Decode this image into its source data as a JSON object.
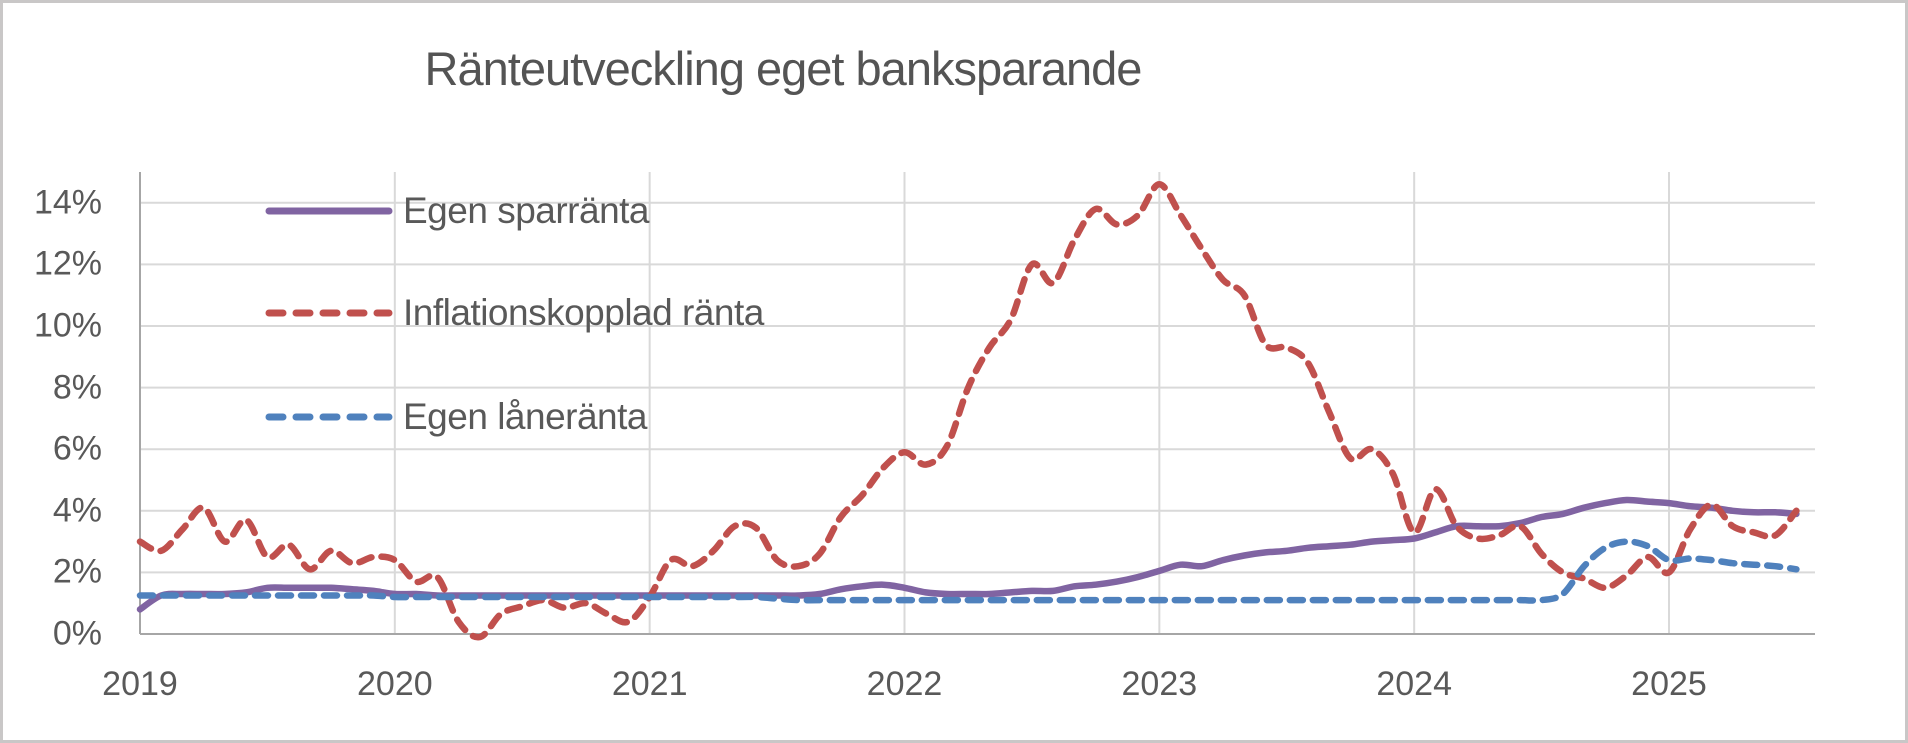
{
  "title": "Ränteutveckling eget banksparande",
  "axes": {
    "y_tick_labels": [
      "0%",
      "2%",
      "4%",
      "6%",
      "8%",
      "10%",
      "12%",
      "14%"
    ],
    "y_tick_values": [
      0,
      2,
      4,
      6,
      8,
      10,
      12,
      14
    ],
    "x_tick_labels": [
      "2019",
      "2020",
      "2021",
      "2022",
      "2023",
      "2024",
      "2025"
    ]
  },
  "colors": {
    "sparranta": "#8064A2",
    "inflation": "#C0504D",
    "laneranta": "#4F81BD",
    "gridline": "#D9D9D9",
    "axis_line": "#A6A6A6",
    "text": "#595959"
  },
  "chart_data": {
    "type": "line",
    "title": "Ränteutveckling eget banksparande",
    "xlabel": "",
    "ylabel": "",
    "y_unit": "percent",
    "ylim": [
      0,
      15
    ],
    "y_major_unit": 2,
    "x_frequency": "monthly",
    "x_start": "2019-01",
    "x_end": "2025-07",
    "x_tick_labels": [
      "2019",
      "2020",
      "2021",
      "2022",
      "2023",
      "2024",
      "2025"
    ],
    "grid": true,
    "legend_position": "inside-top-left",
    "smoothed_lines": true,
    "series": [
      {
        "name": "Egen sparränta",
        "color": "#8064A2",
        "style": "solid",
        "values": [
          0.8,
          1.25,
          1.3,
          1.3,
          1.3,
          1.35,
          1.5,
          1.5,
          1.5,
          1.5,
          1.45,
          1.4,
          1.3,
          1.3,
          1.25,
          1.25,
          1.25,
          1.25,
          1.25,
          1.25,
          1.25,
          1.25,
          1.25,
          1.25,
          1.25,
          1.25,
          1.25,
          1.25,
          1.25,
          1.25,
          1.25,
          1.25,
          1.3,
          1.45,
          1.55,
          1.6,
          1.5,
          1.35,
          1.3,
          1.3,
          1.3,
          1.35,
          1.4,
          1.4,
          1.55,
          1.6,
          1.7,
          1.85,
          2.05,
          2.25,
          2.2,
          2.4,
          2.55,
          2.65,
          2.7,
          2.8,
          2.85,
          2.9,
          3.0,
          3.05,
          3.1,
          3.3,
          3.5,
          3.5,
          3.5,
          3.6,
          3.8,
          3.9,
          4.1,
          4.25,
          4.35,
          4.3,
          4.25,
          4.15,
          4.1,
          4.0,
          3.95,
          3.95,
          3.9
        ]
      },
      {
        "name": "Inflationskopplad ränta",
        "color": "#C0504D",
        "style": "dashed",
        "values": [
          3.0,
          2.7,
          3.4,
          4.1,
          3.0,
          3.7,
          2.5,
          2.9,
          2.1,
          2.7,
          2.3,
          2.5,
          2.4,
          1.7,
          1.85,
          0.4,
          -0.1,
          0.65,
          0.9,
          1.1,
          0.85,
          1.0,
          0.65,
          0.4,
          1.2,
          2.4,
          2.2,
          2.7,
          3.5,
          3.45,
          2.4,
          2.2,
          2.6,
          3.8,
          4.5,
          5.4,
          5.9,
          5.5,
          6.1,
          8.0,
          9.3,
          10.2,
          12.0,
          11.4,
          12.8,
          13.8,
          13.3,
          13.6,
          14.6,
          13.6,
          12.5,
          11.5,
          11.0,
          9.4,
          9.3,
          8.8,
          7.2,
          5.7,
          6.0,
          5.2,
          3.3,
          4.7,
          3.5,
          3.1,
          3.2,
          3.5,
          2.6,
          2.0,
          1.8,
          1.5,
          1.9,
          2.5,
          2.0,
          3.4,
          4.2,
          3.5,
          3.3,
          3.2,
          4.0
        ]
      },
      {
        "name": "Egen låneränta",
        "color": "#4F81BD",
        "style": "dashed",
        "values": [
          1.25,
          1.25,
          1.25,
          1.25,
          1.25,
          1.25,
          1.25,
          1.25,
          1.25,
          1.25,
          1.25,
          1.25,
          1.2,
          1.2,
          1.2,
          1.2,
          1.2,
          1.2,
          1.2,
          1.2,
          1.2,
          1.2,
          1.2,
          1.2,
          1.2,
          1.2,
          1.2,
          1.2,
          1.2,
          1.2,
          1.15,
          1.1,
          1.1,
          1.1,
          1.1,
          1.1,
          1.1,
          1.1,
          1.1,
          1.1,
          1.1,
          1.1,
          1.1,
          1.1,
          1.1,
          1.1,
          1.1,
          1.1,
          1.1,
          1.1,
          1.1,
          1.1,
          1.1,
          1.1,
          1.1,
          1.1,
          1.1,
          1.1,
          1.1,
          1.1,
          1.1,
          1.1,
          1.1,
          1.1,
          1.1,
          1.1,
          1.1,
          1.3,
          2.2,
          2.8,
          3.0,
          2.85,
          2.4,
          2.45,
          2.4,
          2.3,
          2.25,
          2.2,
          2.1
        ]
      }
    ]
  }
}
